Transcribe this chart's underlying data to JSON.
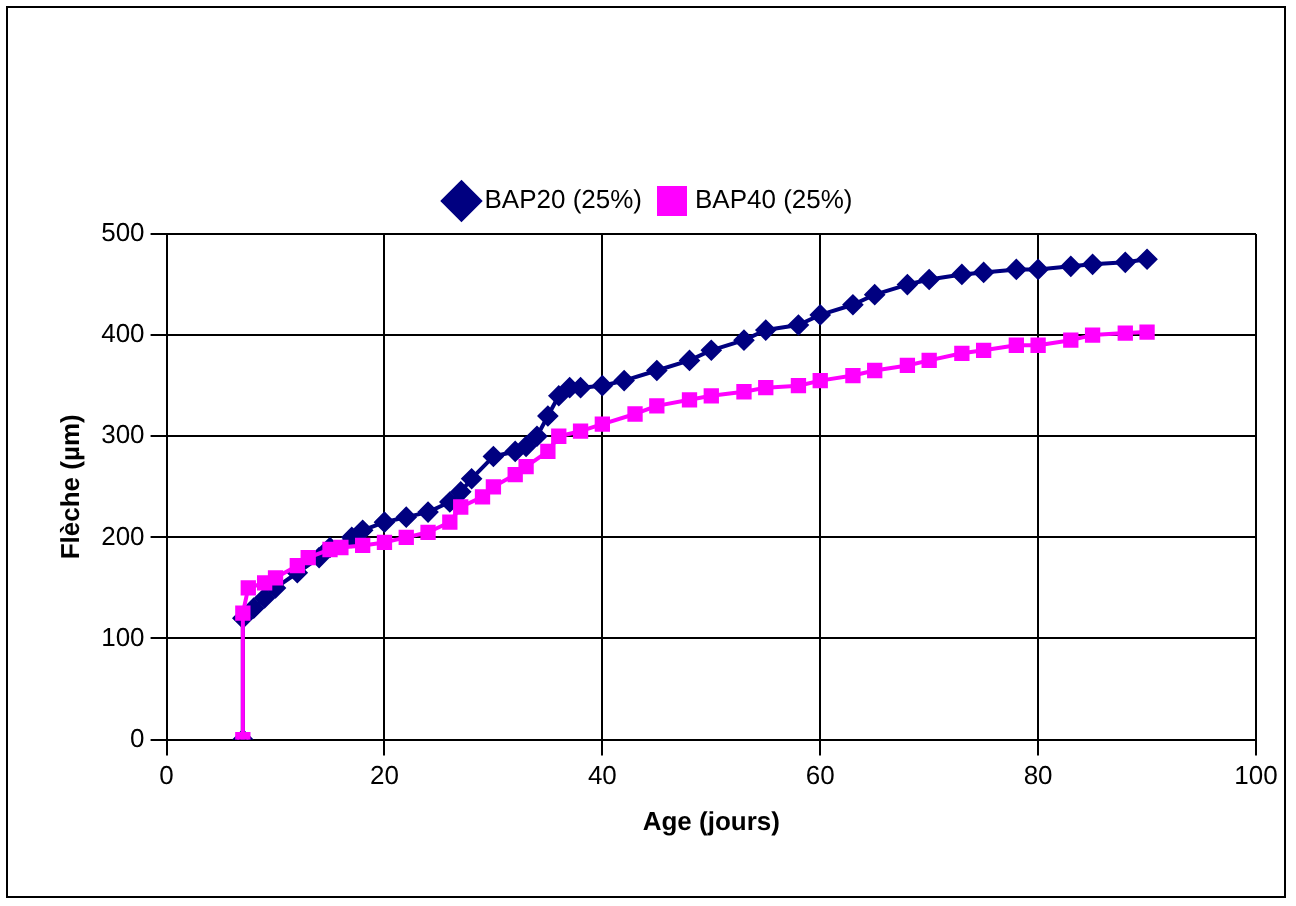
{
  "chart_data": {
    "type": "line",
    "xlabel": "Age (jours)",
    "ylabel": "Flèche (µm)",
    "xlim": [
      0,
      100
    ],
    "xticks": [
      0,
      20,
      40,
      60,
      80,
      100
    ],
    "ylim": [
      0,
      500
    ],
    "yticks": [
      0,
      100,
      200,
      300,
      400,
      500
    ],
    "grid": true,
    "legend": "top",
    "series": [
      {
        "name": "BAP20 (25%)",
        "color": "#000080",
        "marker": "diamond",
        "x": [
          7,
          7,
          8,
          9,
          10,
          12,
          14,
          15,
          17,
          18,
          20,
          22,
          24,
          26,
          27,
          28,
          30,
          32,
          33,
          34,
          35,
          36,
          37,
          38,
          40,
          42,
          45,
          48,
          50,
          53,
          55,
          58,
          60,
          63,
          65,
          68,
          70,
          73,
          75,
          78,
          80,
          83,
          85,
          88,
          90
        ],
        "values": [
          0,
          120,
          130,
          140,
          150,
          165,
          180,
          190,
          200,
          207,
          215,
          220,
          225,
          235,
          245,
          258,
          280,
          285,
          290,
          300,
          320,
          340,
          348,
          348,
          350,
          355,
          365,
          375,
          385,
          395,
          405,
          410,
          420,
          430,
          440,
          450,
          455,
          460,
          462,
          465,
          465,
          468,
          470,
          472,
          475
        ]
      },
      {
        "name": "BAP40 (25%)",
        "color": "#ff00ff",
        "marker": "square",
        "x": [
          7,
          7,
          7.5,
          9,
          10,
          12,
          13,
          15,
          16,
          18,
          20,
          22,
          24,
          26,
          27,
          29,
          30,
          32,
          33,
          35,
          36,
          38,
          40,
          43,
          45,
          48,
          50,
          53,
          55,
          58,
          60,
          63,
          65,
          68,
          70,
          73,
          75,
          78,
          80,
          83,
          85,
          88,
          90
        ],
        "values": [
          0,
          125,
          150,
          155,
          160,
          172,
          180,
          188,
          190,
          192,
          195,
          200,
          205,
          215,
          230,
          240,
          250,
          262,
          270,
          285,
          300,
          305,
          312,
          322,
          330,
          336,
          340,
          344,
          348,
          350,
          355,
          360,
          365,
          370,
          375,
          382,
          385,
          390,
          390,
          395,
          400,
          402,
          403
        ]
      }
    ]
  }
}
